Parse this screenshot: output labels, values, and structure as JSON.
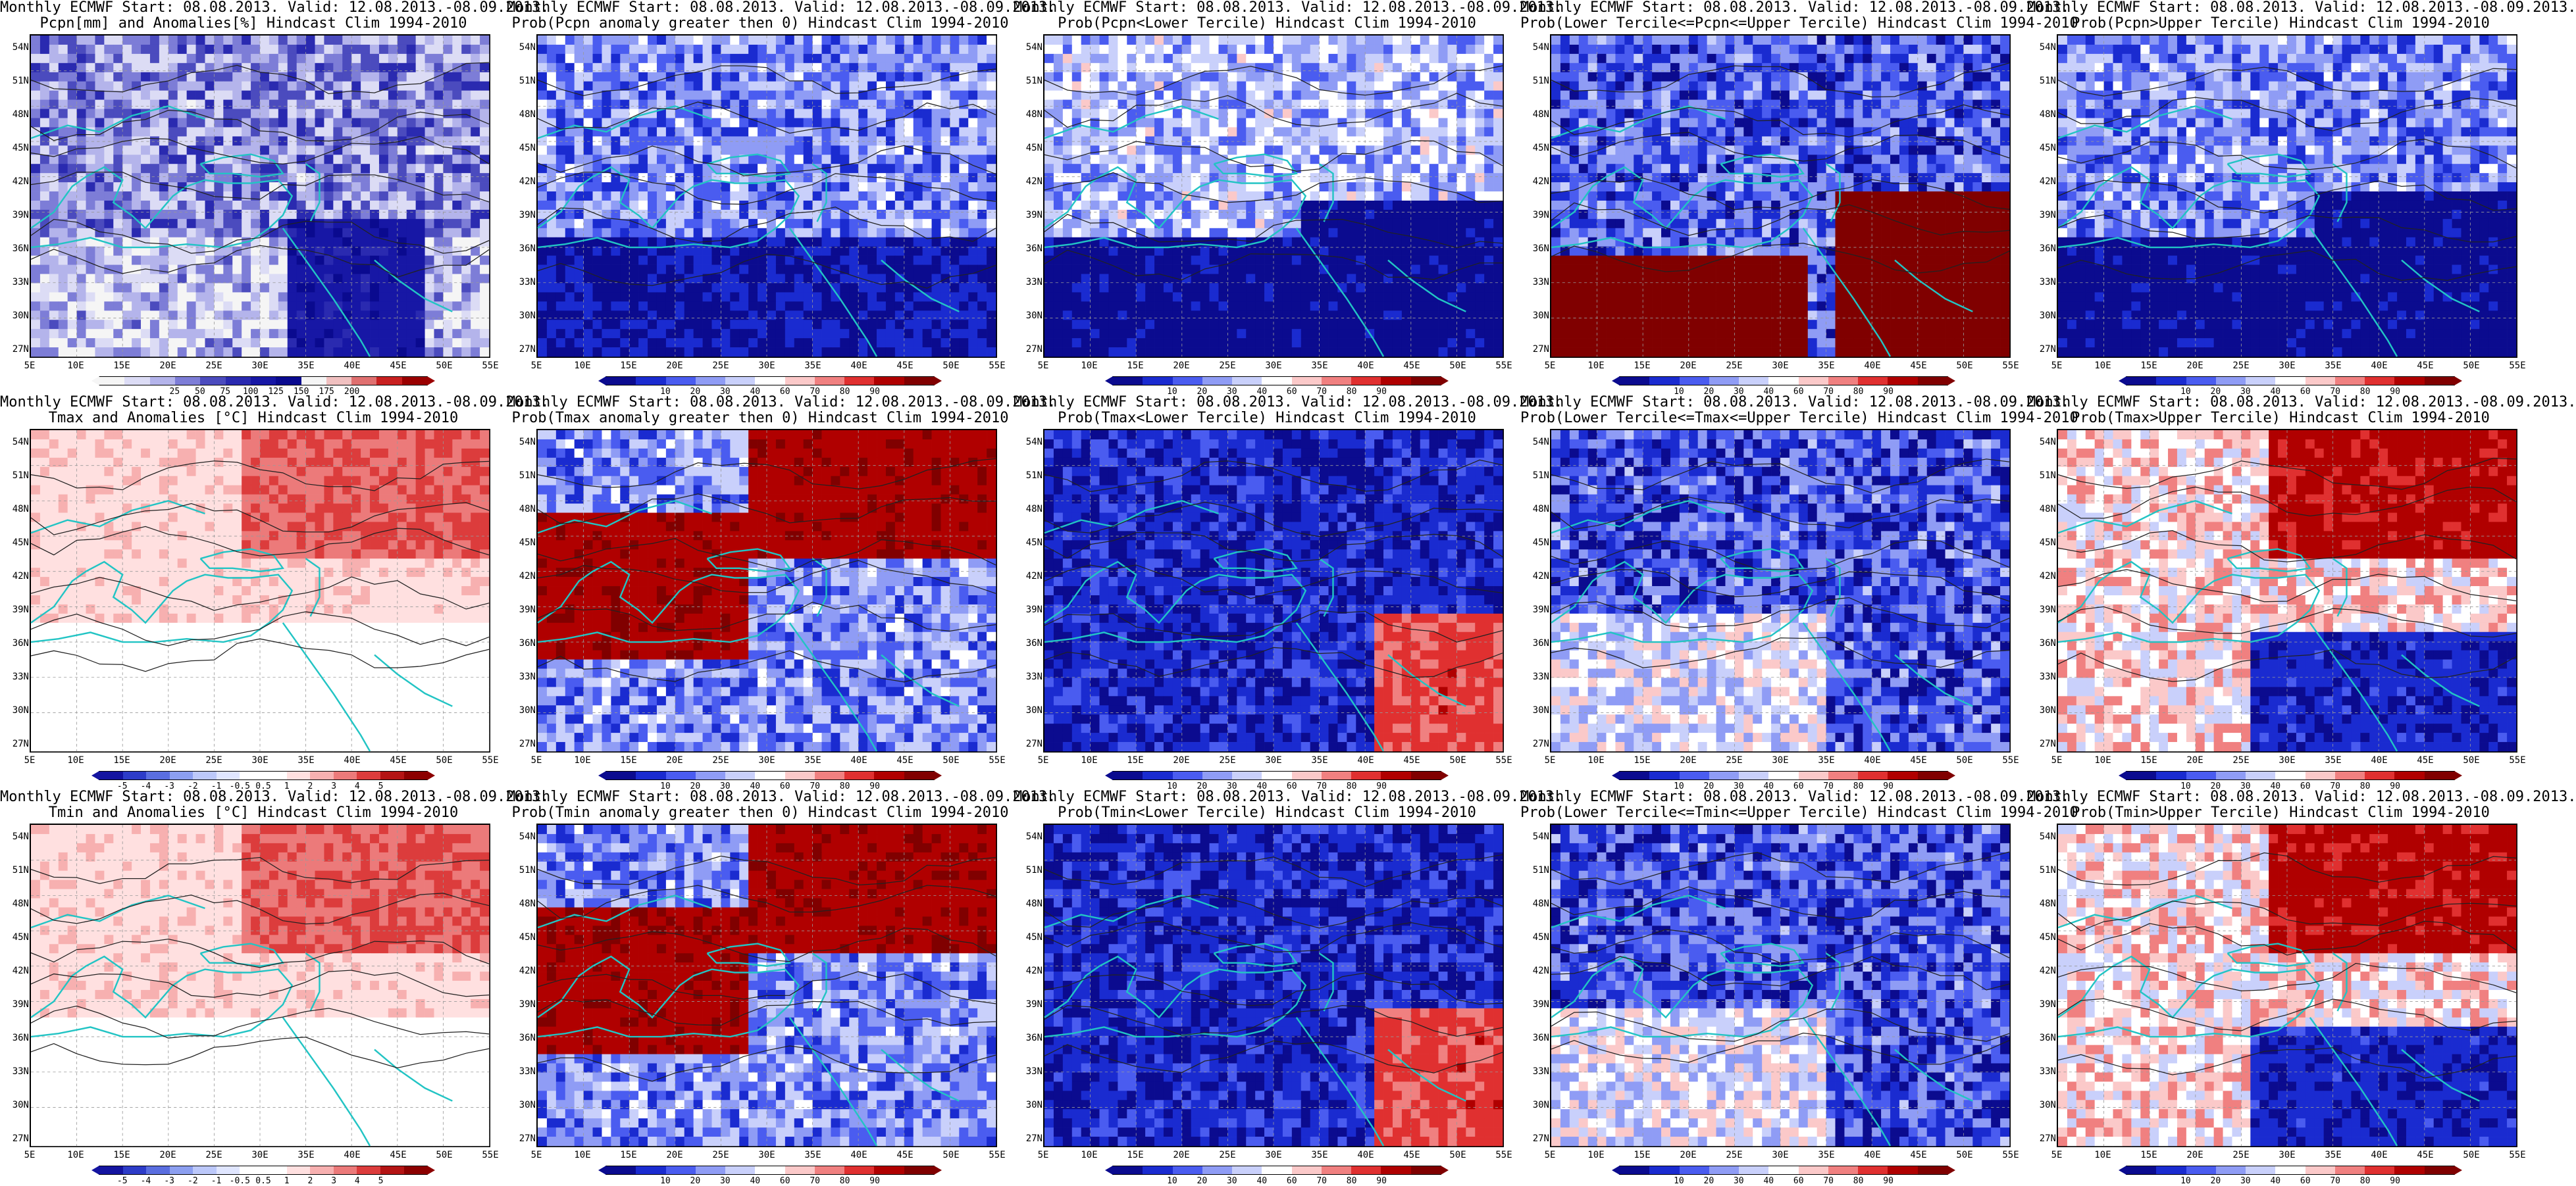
{
  "colorbars": {
    "pcpn_anom": {
      "colors": [
        "#f5f5f5",
        "#dcdcf5",
        "#b4b4eb",
        "#7d7dd7",
        "#4b4bbe",
        "#2a2ab0",
        "#1717a5",
        "#0a0a8f",
        "#f5f5f5",
        "#f0c0c0",
        "#e07070",
        "#c82020",
        "#9a0000"
      ],
      "ticks": [
        "25",
        "50",
        "75",
        "100",
        "125",
        "150",
        "175",
        "200"
      ]
    },
    "temp_anom": {
      "colors": [
        "#1414a0",
        "#2d3cc8",
        "#5a6ee0",
        "#8c9ff0",
        "#bcc8fa",
        "#e0e6ff",
        "#ffffff",
        "#ffffff",
        "#ffe0e0",
        "#f7b0b0",
        "#ec7a7a",
        "#dc3c3c",
        "#b41414",
        "#8c0000"
      ],
      "ticks": [
        "-5",
        "-4",
        "-3",
        "-2",
        "-1",
        "-0.5",
        "0.5",
        "1",
        "2",
        "3",
        "4",
        "5"
      ]
    },
    "prob": {
      "colors": [
        "#0b0b8f",
        "#1a2bd0",
        "#4a5cf0",
        "#8f9cf5",
        "#c9d0fb",
        "#ffffff",
        "#fbc9c9",
        "#f08080",
        "#e03030",
        "#b00000",
        "#800000"
      ],
      "ticks": [
        "10",
        "20",
        "30",
        "40",
        "60",
        "70",
        "80",
        "90"
      ]
    }
  },
  "axes": {
    "lat_labels": [
      "54N",
      "51N",
      "48N",
      "45N",
      "42N",
      "39N",
      "36N",
      "33N",
      "30N",
      "27N"
    ],
    "lon_labels": [
      "5E",
      "10E",
      "15E",
      "20E",
      "25E",
      "30E",
      "35E",
      "40E",
      "45E",
      "50E",
      "55E"
    ]
  },
  "panels": [
    {
      "title1": "Monthly ECMWF Start: 08.08.2013. Valid: 12.08.2013.-08.09.2013.",
      "title2": "Pcpn[mm] and Anomalies[%] Hindcast Clim 1994-2010",
      "colorbar": "pcpn_anom",
      "pattern": "pcpn_anom"
    },
    {
      "title1": "Monthly ECMWF Start: 08.08.2013. Valid: 12.08.2013.-08.09.2013.",
      "title2": "Prob(Pcpn anomaly greater then 0) Hindcast Clim 1994-2010",
      "colorbar": "prob",
      "pattern": "prob_pcpn_pos"
    },
    {
      "title1": "Monthly ECMWF Start: 08.08.2013. Valid: 12.08.2013.-08.09.2013.",
      "title2": "Prob(Pcpn<Lower Tercile) Hindcast Clim 1994-2010",
      "colorbar": "prob",
      "pattern": "prob_pcpn_low"
    },
    {
      "title1": "Monthly ECMWF Start: 08.08.2013. Valid: 12.08.2013.-08.09.2013.",
      "title2": "Prob(Lower Tercile<=Pcpn<=Upper Tercile) Hindcast Clim 1994-2010",
      "colorbar": "prob",
      "pattern": "prob_pcpn_mid"
    },
    {
      "title1": "Monthly ECMWF Start: 08.08.2013. Valid: 12.08.2013.-08.09.2013.",
      "title2": "Prob(Pcpn>Upper Tercile) Hindcast Clim 1994-2010",
      "colorbar": "prob",
      "pattern": "prob_pcpn_up"
    },
    {
      "title1": "Monthly ECMWF Start: 08.08.2013. Valid: 12.08.2013.-08.09.2013.",
      "title2": "Tmax and Anomalies [°C] Hindcast Clim 1994-2010",
      "colorbar": "temp_anom",
      "pattern": "t_anom"
    },
    {
      "title1": "Monthly ECMWF Start: 08.08.2013. Valid: 12.08.2013.-08.09.2013.",
      "title2": "Prob(Tmax anomaly greater then 0) Hindcast Clim 1994-2010",
      "colorbar": "prob",
      "pattern": "prob_t_pos"
    },
    {
      "title1": "Monthly ECMWF Start: 08.08.2013. Valid: 12.08.2013.-08.09.2013.",
      "title2": "Prob(Tmax<Lower Tercile) Hindcast Clim 1994-2010",
      "colorbar": "prob",
      "pattern": "prob_t_low"
    },
    {
      "title1": "Monthly ECMWF Start: 08.08.2013. Valid: 12.08.2013.-08.09.2013.",
      "title2": "Prob(Lower Tercile<=Tmax<=Upper Tercile) Hindcast Clim 1994-2010",
      "colorbar": "prob",
      "pattern": "prob_t_mid"
    },
    {
      "title1": "Monthly ECMWF Start: 08.08.2013. Valid: 12.08.2013.-08.09.2013.",
      "title2": "Prob(Tmax>Upper Tercile) Hindcast Clim 1994-2010",
      "colorbar": "prob",
      "pattern": "prob_t_up"
    },
    {
      "title1": "Monthly ECMWF Start: 08.08.2013. Valid: 12.08.2013.-08.09.2013.",
      "title2": "Tmin and Anomalies [°C] Hindcast Clim 1994-2010",
      "colorbar": "temp_anom",
      "pattern": "t_anom"
    },
    {
      "title1": "Monthly ECMWF Start: 08.08.2013. Valid: 12.08.2013.-08.09.2013.",
      "title2": "Prob(Tmin anomaly greater then 0) Hindcast Clim 1994-2010",
      "colorbar": "prob",
      "pattern": "prob_t_pos"
    },
    {
      "title1": "Monthly ECMWF Start: 08.08.2013. Valid: 12.08.2013.-08.09.2013.",
      "title2": "Prob(Tmin<Lower Tercile) Hindcast Clim 1994-2010",
      "colorbar": "prob",
      "pattern": "prob_t_low"
    },
    {
      "title1": "Monthly ECMWF Start: 08.08.2013. Valid: 12.08.2013.-08.09.2013.",
      "title2": "Prob(Lower Tercile<=Tmin<=Upper Tercile) Hindcast Clim 1994-2010",
      "colorbar": "prob",
      "pattern": "prob_t_mid"
    },
    {
      "title1": "Monthly ECMWF Start: 08.08.2013. Valid: 12.08.2013.-08.09.2013.",
      "title2": "Prob(Tmin>Upper Tercile) Hindcast Clim 1994-2010",
      "colorbar": "prob",
      "pattern": "prob_t_up"
    }
  ]
}
